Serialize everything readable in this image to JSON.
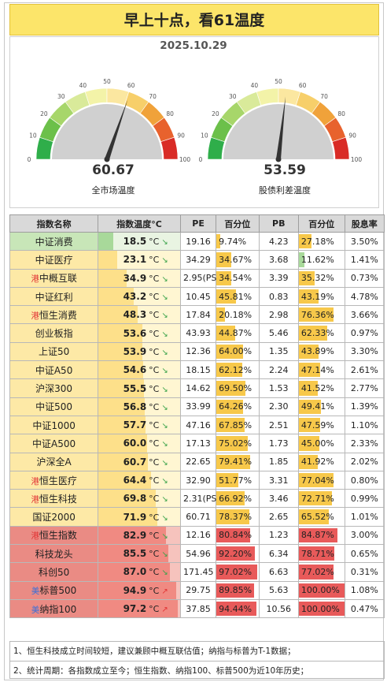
{
  "title": "早上十点，看61温度",
  "date": "2025.10.29",
  "gauges": [
    {
      "value": "60.67",
      "numeric": 60.67,
      "label": "全市场温度",
      "ticks": [
        "0",
        "10",
        "20",
        "30",
        "40",
        "50",
        "60",
        "70",
        "80",
        "90",
        "100"
      ]
    },
    {
      "value": "53.59",
      "numeric": 53.59,
      "label": "股债利差温度",
      "ticks": [
        "0",
        "10",
        "20",
        "30",
        "40",
        "50",
        "60",
        "70",
        "80",
        "90",
        "100"
      ]
    }
  ],
  "table": {
    "headers": [
      "指数名称",
      "指数温度°C",
      "PE",
      "百分位",
      "PB",
      "百分位",
      "股息率"
    ],
    "temp_unit": "°C",
    "rows": [
      {
        "tag": "",
        "name": "中证消费",
        "temp": "18.5",
        "arrow": "↘",
        "pe": "19.16",
        "pe_pct": "9.74%",
        "pb": "4.23",
        "pb_pct": "27.18%",
        "div": "3.50%"
      },
      {
        "tag": "",
        "name": "中证医疗",
        "temp": "23.1",
        "arrow": "↘",
        "pe": "34.29",
        "pe_pct": "34.67%",
        "pb": "3.68",
        "pb_pct": "11.62%",
        "div": "1.41%"
      },
      {
        "tag": "港",
        "name": "中概互联",
        "temp": "34.9",
        "arrow": "↘",
        "pe": "2.95(PS)",
        "pe_pct": "34.54%",
        "pb": "3.39",
        "pb_pct": "35.32%",
        "div": "0.73%"
      },
      {
        "tag": "",
        "name": "中证红利",
        "temp": "43.2",
        "arrow": "↘",
        "pe": "10.45",
        "pe_pct": "45.81%",
        "pb": "0.83",
        "pb_pct": "43.19%",
        "div": "4.78%"
      },
      {
        "tag": "港",
        "name": "恒生消费",
        "temp": "48.3",
        "arrow": "↘",
        "pe": "17.84",
        "pe_pct": "20.18%",
        "pb": "2.98",
        "pb_pct": "76.36%",
        "div": "3.66%"
      },
      {
        "tag": "",
        "name": "创业板指",
        "temp": "53.6",
        "arrow": "↘",
        "pe": "43.93",
        "pe_pct": "44.87%",
        "pb": "5.46",
        "pb_pct": "62.33%",
        "div": "0.97%"
      },
      {
        "tag": "",
        "name": "上证50",
        "temp": "53.9",
        "arrow": "↘",
        "pe": "12.36",
        "pe_pct": "64.00%",
        "pb": "1.35",
        "pb_pct": "43.89%",
        "div": "3.30%"
      },
      {
        "tag": "",
        "name": "中证A50",
        "temp": "54.6",
        "arrow": "↘",
        "pe": "18.15",
        "pe_pct": "62.12%",
        "pb": "2.24",
        "pb_pct": "47.14%",
        "div": "2.61%"
      },
      {
        "tag": "",
        "name": "沪深300",
        "temp": "55.5",
        "arrow": "↘",
        "pe": "14.62",
        "pe_pct": "69.50%",
        "pb": "1.53",
        "pb_pct": "41.52%",
        "div": "2.77%"
      },
      {
        "tag": "",
        "name": "中证500",
        "temp": "56.8",
        "arrow": "↘",
        "pe": "33.99",
        "pe_pct": "64.26%",
        "pb": "2.30",
        "pb_pct": "49.41%",
        "div": "1.39%"
      },
      {
        "tag": "",
        "name": "中证1000",
        "temp": "57.7",
        "arrow": "↘",
        "pe": "47.16",
        "pe_pct": "67.85%",
        "pb": "2.51",
        "pb_pct": "47.59%",
        "div": "1.10%"
      },
      {
        "tag": "",
        "name": "中证A500",
        "temp": "60.0",
        "arrow": "↘",
        "pe": "17.13",
        "pe_pct": "75.02%",
        "pb": "1.73",
        "pb_pct": "45.00%",
        "div": "2.33%"
      },
      {
        "tag": "",
        "name": "沪深全A",
        "temp": "60.7",
        "arrow": "↘",
        "pe": "22.65",
        "pe_pct": "79.41%",
        "pb": "1.85",
        "pb_pct": "41.92%",
        "div": "2.02%"
      },
      {
        "tag": "港",
        "name": "恒生医疗",
        "temp": "64.4",
        "arrow": "↘",
        "pe": "32.90",
        "pe_pct": "51.77%",
        "pb": "3.31",
        "pb_pct": "77.04%",
        "div": "0.80%"
      },
      {
        "tag": "港",
        "name": "恒生科技",
        "temp": "69.8",
        "arrow": "↘",
        "pe": "2.31(PS)",
        "pe_pct": "66.92%",
        "pb": "3.46",
        "pb_pct": "72.71%",
        "div": "0.99%"
      },
      {
        "tag": "",
        "name": "国证2000",
        "temp": "71.9",
        "arrow": "↘",
        "pe": "60.71",
        "pe_pct": "78.37%",
        "pb": "2.65",
        "pb_pct": "65.52%",
        "div": "1.01%"
      },
      {
        "tag": "港",
        "name": "恒生指数",
        "temp": "82.9",
        "arrow": "↘",
        "pe": "12.16",
        "pe_pct": "80.84%",
        "pb": "1.23",
        "pb_pct": "84.87%",
        "div": "3.00%"
      },
      {
        "tag": "",
        "name": "科技龙头",
        "temp": "85.5",
        "arrow": "↘",
        "pe": "54.96",
        "pe_pct": "92.20%",
        "pb": "6.34",
        "pb_pct": "78.71%",
        "div": "0.65%"
      },
      {
        "tag": "",
        "name": "科创50",
        "temp": "87.0",
        "arrow": "↘",
        "pe": "171.45",
        "pe_pct": "97.02%",
        "pb": "6.63",
        "pb_pct": "77.02%",
        "div": "0.31%"
      },
      {
        "tag": "美",
        "name": "标普500",
        "temp": "94.9",
        "arrow": "↗",
        "pe": "29.75",
        "pe_pct": "89.85%",
        "pb": "5.63",
        "pb_pct": "100.00%",
        "div": "1.08%"
      },
      {
        "tag": "美",
        "name": "纳指100",
        "temp": "97.2",
        "arrow": "↗",
        "pe": "37.85",
        "pe_pct": "94.44%",
        "pb": "10.56",
        "pb_pct": "100.00%",
        "div": "0.47%"
      }
    ]
  },
  "notes": [
    "1、恒生科技成立时间较短，建议兼顾中概互联估值；纳指与标普为T-1数据；",
    "2、统计周期：各指数成立至今；恒生指数、纳指100、标普500为近10年历史；"
  ],
  "colors": {
    "title_bg": "#fce56a",
    "cold": "#c8e6b8",
    "mid": "#fde9a6",
    "hot": "#ea8b84",
    "bar_yellow": "#f7c84a",
    "bar_red": "#e85a5a",
    "up_arrow": "#e23535",
    "down_arrow": "#3aa34a"
  }
}
